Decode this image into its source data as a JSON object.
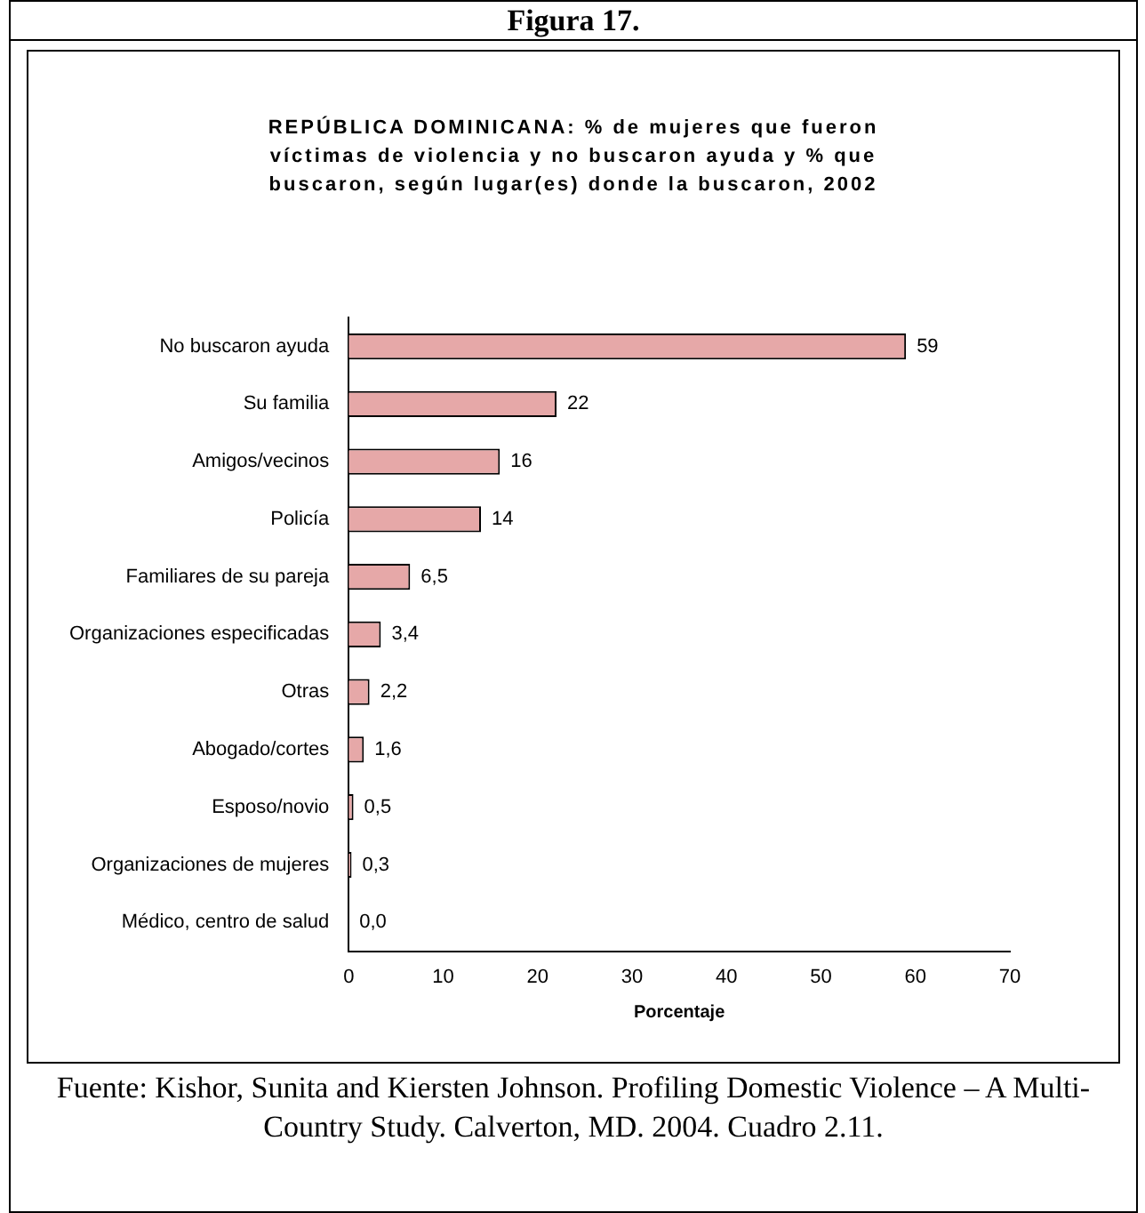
{
  "chart_data": {
    "type": "bar",
    "orientation": "horizontal",
    "title": "REPÚBLICA DOMINICANA: % de mujeres que fueron víctimas de violencia y no buscaron ayuda y % que buscaron, según lugar(es) donde la buscaron, 2002",
    "xlabel": "Porcentaje",
    "annotations": [
      "Figura 17.",
      "Fuente: Kishor, Sunita and Kiersten Johnson. Profiling Domestic Violence – A Multi-Country Study. Calverton, MD. 2004. Cuadro 2.11."
    ],
    "categories": [
      "No buscaron ayuda",
      "Su familia",
      "Amigos/vecinos",
      "Policía",
      "Familiares de su pareja",
      "Organizaciones especificadas",
      "Otras",
      "Abogado/cortes",
      "Esposo/novio",
      "Organizaciones de mujeres",
      "Médico, centro de salud"
    ],
    "values": [
      59,
      22,
      16,
      14,
      6.5,
      3.4,
      2.2,
      1.6,
      0.5,
      0.3,
      0.0
    ],
    "value_labels": [
      "59",
      "22",
      "16",
      "14",
      "6,5",
      "3,4",
      "2,2",
      "1,6",
      "0,5",
      "0,3",
      "0,0"
    ],
    "color": "#e6a8a8",
    "xlim": [
      0,
      70
    ],
    "xticks": [
      0,
      10,
      20,
      30,
      40,
      50,
      60,
      70
    ],
    "grid": false,
    "legend": false
  }
}
